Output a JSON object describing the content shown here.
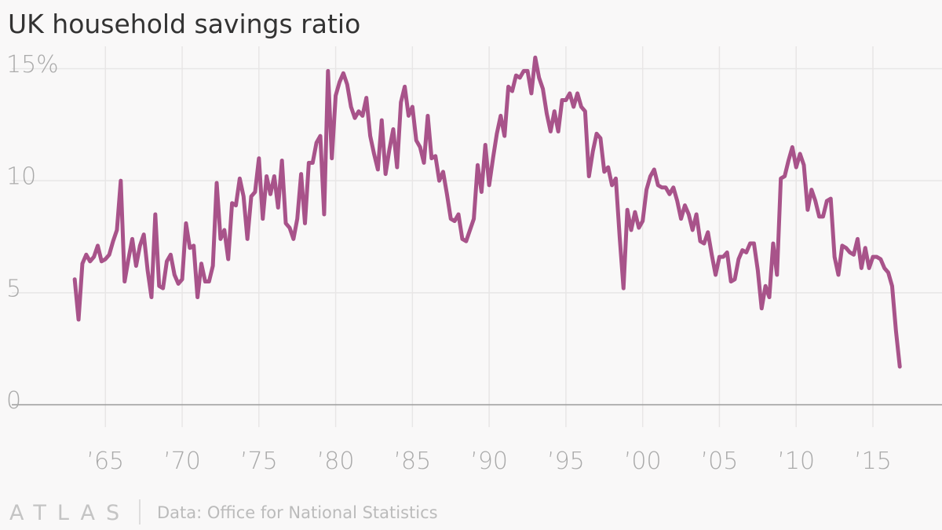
{
  "chart_data": {
    "type": "line",
    "title": "UK household savings ratio",
    "source": "Data: Office for National Statistics",
    "logo": "ATLAS",
    "color": "#a8538a",
    "grid": true,
    "xlim": [
      1958.9,
      2019.5
    ],
    "ylim": [
      -1,
      16
    ],
    "xticks": [
      {
        "value": 1965,
        "label": "’65"
      },
      {
        "value": 1970,
        "label": "’70"
      },
      {
        "value": 1975,
        "label": "’75"
      },
      {
        "value": 1980,
        "label": "’80"
      },
      {
        "value": 1985,
        "label": "’85"
      },
      {
        "value": 1990,
        "label": "’90"
      },
      {
        "value": 1995,
        "label": "’95"
      },
      {
        "value": 2000,
        "label": "’00"
      },
      {
        "value": 2005,
        "label": "’05"
      },
      {
        "value": 2010,
        "label": "’10"
      },
      {
        "value": 2015,
        "label": "’15"
      }
    ],
    "yticks": [
      0,
      5,
      10,
      {
        "value": 15,
        "label": "15%"
      }
    ],
    "x": [
      1963,
      1963.25,
      1963.5,
      1963.75,
      1964,
      1964.25,
      1964.5,
      1964.75,
      1965,
      1965.25,
      1965.5,
      1965.75,
      1966,
      1966.25,
      1966.5,
      1966.75,
      1967,
      1967.25,
      1967.5,
      1967.75,
      1968,
      1968.25,
      1968.5,
      1968.75,
      1969,
      1969.25,
      1969.5,
      1969.75,
      1970,
      1970.25,
      1970.5,
      1970.75,
      1971,
      1971.25,
      1971.5,
      1971.75,
      1972,
      1972.25,
      1972.5,
      1972.75,
      1973,
      1973.25,
      1973.5,
      1973.75,
      1974,
      1974.25,
      1974.5,
      1974.75,
      1975,
      1975.25,
      1975.5,
      1975.75,
      1976,
      1976.25,
      1976.5,
      1976.75,
      1977,
      1977.25,
      1977.5,
      1977.75,
      1978,
      1978.25,
      1978.5,
      1978.75,
      1979,
      1979.25,
      1979.5,
      1979.75,
      1980,
      1980.25,
      1980.5,
      1980.75,
      1981,
      1981.25,
      1981.5,
      1981.75,
      1982,
      1982.25,
      1982.5,
      1982.75,
      1983,
      1983.25,
      1983.5,
      1983.75,
      1984,
      1984.25,
      1984.5,
      1984.75,
      1985,
      1985.25,
      1985.5,
      1985.75,
      1986,
      1986.25,
      1986.5,
      1986.75,
      1987,
      1987.25,
      1987.5,
      1987.75,
      1988,
      1988.25,
      1988.5,
      1988.75,
      1989,
      1989.25,
      1989.5,
      1989.75,
      1990,
      1990.25,
      1990.5,
      1990.75,
      1991,
      1991.25,
      1991.5,
      1991.75,
      1992,
      1992.25,
      1992.5,
      1992.75,
      1993,
      1993.25,
      1993.5,
      1993.75,
      1994,
      1994.25,
      1994.5,
      1994.75,
      1995,
      1995.25,
      1995.5,
      1995.75,
      1996,
      1996.25,
      1996.5,
      1996.75,
      1997,
      1997.25,
      1997.5,
      1997.75,
      1998,
      1998.25,
      1998.5,
      1998.75,
      1999,
      1999.25,
      1999.5,
      1999.75,
      2000,
      2000.25,
      2000.5,
      2000.75,
      2001,
      2001.25,
      2001.5,
      2001.75,
      2002,
      2002.25,
      2002.5,
      2002.75,
      2003,
      2003.25,
      2003.5,
      2003.75,
      2004,
      2004.25,
      2004.5,
      2004.75,
      2005,
      2005.25,
      2005.5,
      2005.75,
      2006,
      2006.25,
      2006.5,
      2006.75,
      2007,
      2007.25,
      2007.5,
      2007.75,
      2008,
      2008.25,
      2008.5,
      2008.75,
      2009,
      2009.25,
      2009.5,
      2009.75,
      2010,
      2010.25,
      2010.5,
      2010.75,
      2011,
      2011.25,
      2011.5,
      2011.75,
      2012,
      2012.25,
      2012.5,
      2012.75,
      2013,
      2013.25,
      2013.5,
      2013.75,
      2014,
      2014.25,
      2014.5,
      2014.75,
      2015,
      2015.25,
      2015.5,
      2015.75,
      2016,
      2016.25,
      2016.5,
      2016.75
    ],
    "values": [
      5.6,
      3.8,
      6.3,
      6.7,
      6.4,
      6.6,
      7.1,
      6.4,
      6.5,
      6.7,
      7.3,
      7.8,
      10.0,
      5.5,
      6.5,
      7.4,
      6.2,
      7.1,
      7.6,
      6.0,
      4.8,
      8.5,
      5.3,
      5.2,
      6.4,
      6.7,
      5.8,
      5.4,
      5.6,
      8.1,
      7.0,
      7.1,
      4.8,
      6.3,
      5.5,
      5.5,
      6.2,
      9.9,
      7.4,
      7.8,
      6.5,
      9.0,
      8.9,
      10.1,
      9.3,
      7.4,
      9.3,
      9.5,
      11.0,
      8.3,
      10.2,
      9.4,
      10.2,
      8.8,
      10.9,
      8.1,
      7.9,
      7.4,
      8.3,
      10.3,
      8.1,
      10.8,
      10.8,
      11.7,
      12.0,
      8.5,
      14.9,
      11.0,
      13.8,
      14.4,
      14.8,
      14.3,
      13.3,
      12.8,
      13.1,
      12.9,
      13.7,
      12.0,
      11.2,
      10.5,
      12.7,
      10.3,
      11.4,
      12.3,
      10.6,
      13.5,
      14.2,
      12.9,
      13.3,
      11.8,
      11.5,
      10.8,
      12.9,
      11.0,
      11.1,
      10.0,
      10.4,
      9.4,
      8.3,
      8.2,
      8.5,
      7.4,
      7.3,
      7.8,
      8.3,
      10.7,
      9.5,
      11.6,
      9.8,
      11.0,
      12.1,
      12.9,
      12.0,
      14.2,
      14.0,
      14.7,
      14.6,
      14.9,
      14.9,
      13.9,
      15.5,
      14.6,
      14.1,
      13.0,
      12.2,
      13.1,
      12.2,
      13.6,
      13.6,
      13.9,
      13.3,
      13.9,
      13.3,
      13.1,
      10.2,
      11.3,
      12.1,
      11.9,
      10.4,
      10.6,
      9.8,
      10.1,
      7.5,
      5.2,
      8.7,
      7.8,
      8.6,
      7.9,
      8.2,
      9.6,
      10.2,
      10.5,
      9.8,
      9.7,
      9.7,
      9.4,
      9.7,
      9.1,
      8.3,
      8.9,
      8.5,
      7.8,
      8.5,
      7.3,
      7.2,
      7.7,
      6.7,
      5.8,
      6.6,
      6.6,
      6.8,
      5.5,
      5.6,
      6.5,
      6.9,
      6.8,
      7.2,
      7.2,
      6.0,
      4.3,
      5.3,
      4.8,
      7.2,
      5.8,
      10.1,
      10.2,
      10.9,
      11.5,
      10.6,
      11.2,
      10.7,
      8.7,
      9.6,
      9.1,
      8.4,
      8.4,
      9.1,
      9.2,
      6.6,
      5.8,
      7.1,
      7.0,
      6.8,
      6.7,
      7.4,
      6.1,
      7.0,
      6.1,
      6.6,
      6.6,
      6.5,
      6.1,
      5.9,
      5.3,
      3.3,
      1.7
    ]
  }
}
